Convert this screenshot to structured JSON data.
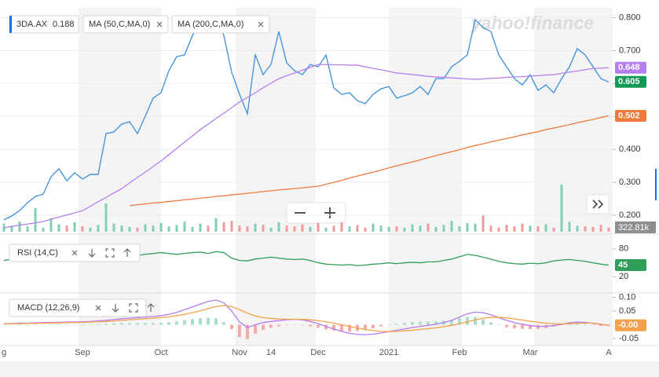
{
  "watermark": "yahoo!finance",
  "chart_data": [
    {
      "type": "line",
      "categories": [
        "g",
        null,
        null,
        null,
        null,
        null,
        null,
        null,
        null,
        null,
        "Sep",
        null,
        null,
        null,
        null,
        null,
        null,
        null,
        null,
        null,
        "Oct",
        null,
        null,
        null,
        null,
        null,
        null,
        null,
        null,
        null,
        "Nov",
        null,
        null,
        null,
        "14",
        null,
        null,
        null,
        null,
        null,
        "Dec",
        null,
        null,
        null,
        null,
        null,
        null,
        null,
        null,
        "2021",
        null,
        null,
        null,
        null,
        null,
        null,
        null,
        null,
        "Feb",
        null,
        null,
        null,
        null,
        null,
        null,
        null,
        null,
        "Mar",
        null,
        null,
        null,
        null,
        null,
        null,
        null,
        null,
        null,
        "A"
      ],
      "ylim": [
        0.15,
        0.83
      ],
      "yticks": [
        {
          "value": 0.2,
          "label": "0.200"
        },
        {
          "value": 0.3,
          "label": "0.300"
        },
        {
          "value": 0.4,
          "label": "0.400"
        },
        {
          "value": 0.5,
          "label": "0.500"
        },
        {
          "value": 0.6,
          "label": "0.600"
        },
        {
          "value": 0.7,
          "label": "0.700"
        },
        {
          "value": 0.8,
          "label": "0.800"
        }
      ],
      "grid": true,
      "series": [
        {
          "name": "3DA.AX",
          "legend_value": 0.188,
          "color": "#3b8fdc",
          "label_color": "#129b57",
          "show_last": true,
          "values": [
            0.186,
            0.198,
            0.214,
            0.238,
            0.257,
            0.264,
            0.317,
            0.341,
            0.305,
            0.329,
            0.31,
            0.324,
            0.324,
            0.448,
            0.453,
            0.477,
            0.484,
            0.448,
            0.501,
            0.556,
            0.572,
            0.639,
            0.682,
            0.687,
            0.746,
            0.782,
            0.758,
            0.806,
            0.746,
            0.634,
            0.567,
            0.508,
            0.687,
            0.627,
            0.658,
            0.758,
            0.663,
            0.639,
            0.627,
            0.658,
            0.651,
            0.687,
            0.587,
            0.567,
            0.572,
            0.548,
            0.539,
            0.567,
            0.584,
            0.591,
            0.556,
            0.563,
            0.572,
            0.591,
            0.567,
            0.615,
            0.615,
            0.651,
            0.668,
            0.687,
            0.794,
            0.77,
            0.758,
            0.687,
            0.651,
            0.615,
            0.596,
            0.627,
            0.579,
            0.596,
            0.572,
            0.615,
            0.651,
            0.706,
            0.687,
            0.651,
            0.615,
            0.605
          ]
        },
        {
          "name": "MA (50,C,MA,0)",
          "color": "#b57ff0",
          "show_last": true,
          "values": [
            0.162,
            0.166,
            0.17,
            0.173,
            0.177,
            0.181,
            0.188,
            0.194,
            0.201,
            0.207,
            0.214,
            0.227,
            0.241,
            0.254,
            0.268,
            0.281,
            0.298,
            0.315,
            0.331,
            0.348,
            0.365,
            0.384,
            0.403,
            0.422,
            0.441,
            0.46,
            0.477,
            0.494,
            0.51,
            0.527,
            0.544,
            0.558,
            0.572,
            0.587,
            0.601,
            0.615,
            0.624,
            0.632,
            0.641,
            0.649,
            0.658,
            0.658,
            0.657,
            0.657,
            0.656,
            0.656,
            0.651,
            0.646,
            0.642,
            0.637,
            0.632,
            0.63,
            0.627,
            0.625,
            0.622,
            0.62,
            0.619,
            0.617,
            0.616,
            0.614,
            0.613,
            0.614,
            0.616,
            0.617,
            0.619,
            0.62,
            0.621,
            0.623,
            0.624,
            0.626,
            0.627,
            0.631,
            0.635,
            0.638,
            0.642,
            0.646,
            0.647,
            0.648
          ]
        },
        {
          "name": "MA (200,C,MA,0)",
          "color": "#f07a3c",
          "show_last": true,
          "values": [
            null,
            null,
            null,
            null,
            null,
            null,
            null,
            null,
            null,
            null,
            null,
            null,
            null,
            null,
            null,
            null,
            0.229,
            0.232,
            0.234,
            0.237,
            0.239,
            0.242,
            0.244,
            0.247,
            0.249,
            0.252,
            0.254,
            0.257,
            0.259,
            0.262,
            0.264,
            0.267,
            0.269,
            0.272,
            0.274,
            0.277,
            0.279,
            0.281,
            0.283,
            0.286,
            0.288,
            0.294,
            0.3,
            0.306,
            0.313,
            0.319,
            0.325,
            0.331,
            0.337,
            0.344,
            0.35,
            0.356,
            0.362,
            0.368,
            0.375,
            0.381,
            0.387,
            0.393,
            0.399,
            0.406,
            0.412,
            0.417,
            0.423,
            0.428,
            0.433,
            0.438,
            0.444,
            0.449,
            0.454,
            0.46,
            0.465,
            0.47,
            0.475,
            0.481,
            0.486,
            0.491,
            0.497,
            0.502
          ]
        }
      ],
      "volume": {
        "label": "322.81k",
        "ylim": [
          0,
          700
        ],
        "up_color": "#7fd1b0",
        "down_color": "#f29a9a",
        "values": [
          120,
          90,
          150,
          80,
          350,
          60,
          200,
          110,
          90,
          140,
          80,
          60,
          100,
          420,
          120,
          90,
          70,
          60,
          110,
          90,
          130,
          80,
          100,
          150,
          70,
          120,
          90,
          200,
          140,
          160,
          90,
          80,
          120,
          100,
          60,
          140,
          90,
          80,
          110,
          70,
          130,
          60,
          90,
          140,
          80,
          100,
          60,
          120,
          90,
          70,
          80,
          60,
          110,
          90,
          120,
          70,
          100,
          160,
          80,
          130,
          120,
          240,
          90,
          60,
          100,
          80,
          120,
          90,
          80,
          110,
          60,
          700,
          150,
          90,
          80,
          70,
          100,
          60
        ]
      }
    },
    {
      "type": "line",
      "title": "RSI (14,C)",
      "ylim": [
        -10,
        100
      ],
      "yticks": [
        20,
        80
      ],
      "series": [
        {
          "color": "#2e9e5b",
          "show_last": true,
          "values": [
            55,
            58,
            60,
            62,
            63,
            61,
            64,
            62,
            58,
            60,
            58,
            60,
            62,
            66,
            65,
            67,
            64,
            66,
            68,
            70,
            72,
            70,
            68,
            70,
            72,
            73,
            70,
            74,
            72,
            60,
            55,
            54,
            58,
            60,
            62,
            60,
            58,
            57,
            58,
            55,
            50,
            47,
            46,
            45,
            46,
            44,
            45,
            47,
            48,
            50,
            48,
            50,
            51,
            50,
            52,
            52,
            55,
            58,
            63,
            68,
            66,
            62,
            58,
            53,
            50,
            48,
            47,
            49,
            48,
            50,
            54,
            56,
            57,
            55,
            53,
            50,
            47,
            45
          ]
        }
      ]
    },
    {
      "type": "line",
      "title": "MACD (12,26,9)",
      "ylim": [
        -0.07,
        0.11
      ],
      "yticks": [
        -0.05,
        0.05,
        {
          "value": 0.1,
          "label": "0.10"
        }
      ],
      "series": [
        {
          "type": "bar",
          "up_color": "#a9dec9",
          "down_color": "#f5a9a9",
          "values": [
            0.001,
            0.001,
            0.002,
            0.001,
            0.002,
            0.002,
            0.002,
            0.002,
            0.002,
            0.002,
            0.002,
            0.002,
            0.003,
            0.004,
            0.005,
            0.006,
            0.006,
            0.006,
            0.006,
            0.006,
            0.007,
            0.009,
            0.012,
            0.017,
            0.021,
            0.024,
            0.026,
            0.024,
            0.01,
            -0.016,
            -0.045,
            -0.052,
            -0.032,
            -0.018,
            -0.011,
            -0.006,
            -0.002,
            0.0,
            -0.002,
            -0.006,
            -0.011,
            -0.017,
            -0.021,
            -0.024,
            -0.025,
            -0.023,
            -0.019,
            -0.013,
            -0.006,
            0.0,
            0.004,
            0.007,
            0.01,
            0.011,
            0.012,
            0.013,
            0.015,
            0.018,
            0.024,
            0.029,
            0.028,
            0.02,
            0.009,
            -0.001,
            -0.009,
            -0.013,
            -0.015,
            -0.016,
            -0.015,
            -0.012,
            -0.007,
            -0.001,
            0.003,
            0.005,
            0.003,
            -0.001,
            -0.004,
            -0.005
          ]
        },
        {
          "color": "#b57bee",
          "values": [
            0.004,
            0.005,
            0.006,
            0.006,
            0.007,
            0.008,
            0.008,
            0.009,
            0.01,
            0.01,
            0.011,
            0.012,
            0.014,
            0.016,
            0.019,
            0.022,
            0.024,
            0.026,
            0.028,
            0.03,
            0.033,
            0.038,
            0.045,
            0.055,
            0.065,
            0.075,
            0.085,
            0.09,
            0.08,
            0.05,
            0.01,
            -0.01,
            0.0,
            0.008,
            0.012,
            0.015,
            0.018,
            0.02,
            0.018,
            0.012,
            0.004,
            -0.006,
            -0.015,
            -0.024,
            -0.031,
            -0.035,
            -0.036,
            -0.034,
            -0.03,
            -0.025,
            -0.02,
            -0.015,
            -0.01,
            -0.006,
            -0.002,
            0.002,
            0.008,
            0.016,
            0.028,
            0.04,
            0.046,
            0.044,
            0.036,
            0.026,
            0.016,
            0.008,
            0.002,
            -0.003,
            -0.006,
            -0.006,
            -0.003,
            0.002,
            0.007,
            0.01,
            0.009,
            0.005,
            0.001,
            -0.002
          ]
        },
        {
          "color": "#f5a04a",
          "show_last": true,
          "last_label": "-0.00",
          "values": [
            0.003,
            0.004,
            0.004,
            0.005,
            0.005,
            0.006,
            0.006,
            0.007,
            0.008,
            0.008,
            0.009,
            0.01,
            0.011,
            0.012,
            0.014,
            0.016,
            0.018,
            0.02,
            0.022,
            0.024,
            0.026,
            0.029,
            0.033,
            0.038,
            0.044,
            0.051,
            0.059,
            0.066,
            0.07,
            0.066,
            0.055,
            0.042,
            0.032,
            0.026,
            0.023,
            0.021,
            0.02,
            0.02,
            0.02,
            0.018,
            0.015,
            0.011,
            0.006,
            0.0,
            -0.006,
            -0.012,
            -0.017,
            -0.021,
            -0.024,
            -0.025,
            -0.024,
            -0.022,
            -0.02,
            -0.017,
            -0.014,
            -0.011,
            -0.007,
            -0.002,
            0.004,
            0.011,
            0.018,
            0.024,
            0.027,
            0.027,
            0.025,
            0.021,
            0.017,
            0.013,
            0.009,
            0.006,
            0.004,
            0.003,
            0.004,
            0.005,
            0.006,
            0.006,
            0.002,
            -0.002
          ]
        }
      ]
    }
  ]
}
